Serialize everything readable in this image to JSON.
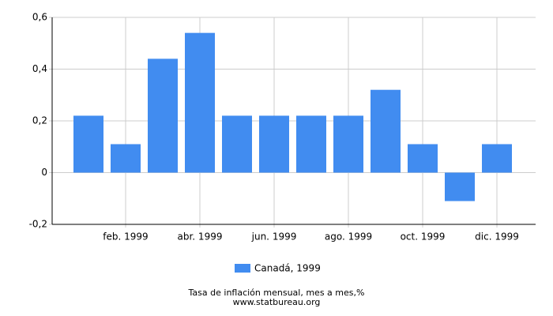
{
  "chart_data": {
    "type": "bar",
    "title": "Tasa de inflación mensual, mes a mes,%",
    "source": "www.statbureau.org",
    "categories": [
      null,
      "feb. 1999",
      null,
      "abr. 1999",
      null,
      "jun. 1999",
      null,
      "ago. 1999",
      null,
      "oct. 1999",
      null,
      "dic. 1999"
    ],
    "series": [
      {
        "name": "Canadá, 1999",
        "color": "#418cf0",
        "values": [
          0.22,
          0.11,
          0.44,
          0.54,
          0.22,
          0.22,
          0.22,
          0.22,
          0.32,
          0.11,
          -0.11,
          0.11
        ]
      }
    ],
    "ylim": [
      -0.2,
      0.6
    ],
    "yticks": [
      {
        "value": -0.2,
        "label": "-0,2"
      },
      0,
      {
        "value": 0.2,
        "label": "0,2"
      },
      {
        "value": 0.4,
        "label": "0,4"
      },
      {
        "value": 0.6,
        "label": "0,6"
      }
    ],
    "grid": true
  }
}
